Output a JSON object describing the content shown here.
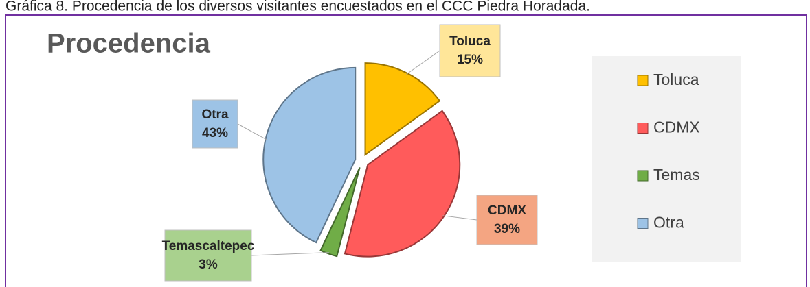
{
  "caption": "Gráfica 8. Procedencia de los diversos visitantes encuestados en el CCC Piedra Horadada.",
  "chart_data": {
    "type": "pie",
    "title": "Procedencia",
    "categories": [
      "Toluca",
      "CDMX",
      "Temascaltepec",
      "Otra"
    ],
    "legend": [
      "Toluca",
      "CDMX",
      "Temas",
      "Otra"
    ],
    "values": [
      15,
      39,
      3,
      43
    ],
    "value_labels": [
      "15%",
      "39%",
      "3%",
      "43%"
    ],
    "colors": [
      "#FFC000",
      "#FF5B5B",
      "#70AD47",
      "#9DC3E6"
    ],
    "legend_position": "right"
  }
}
